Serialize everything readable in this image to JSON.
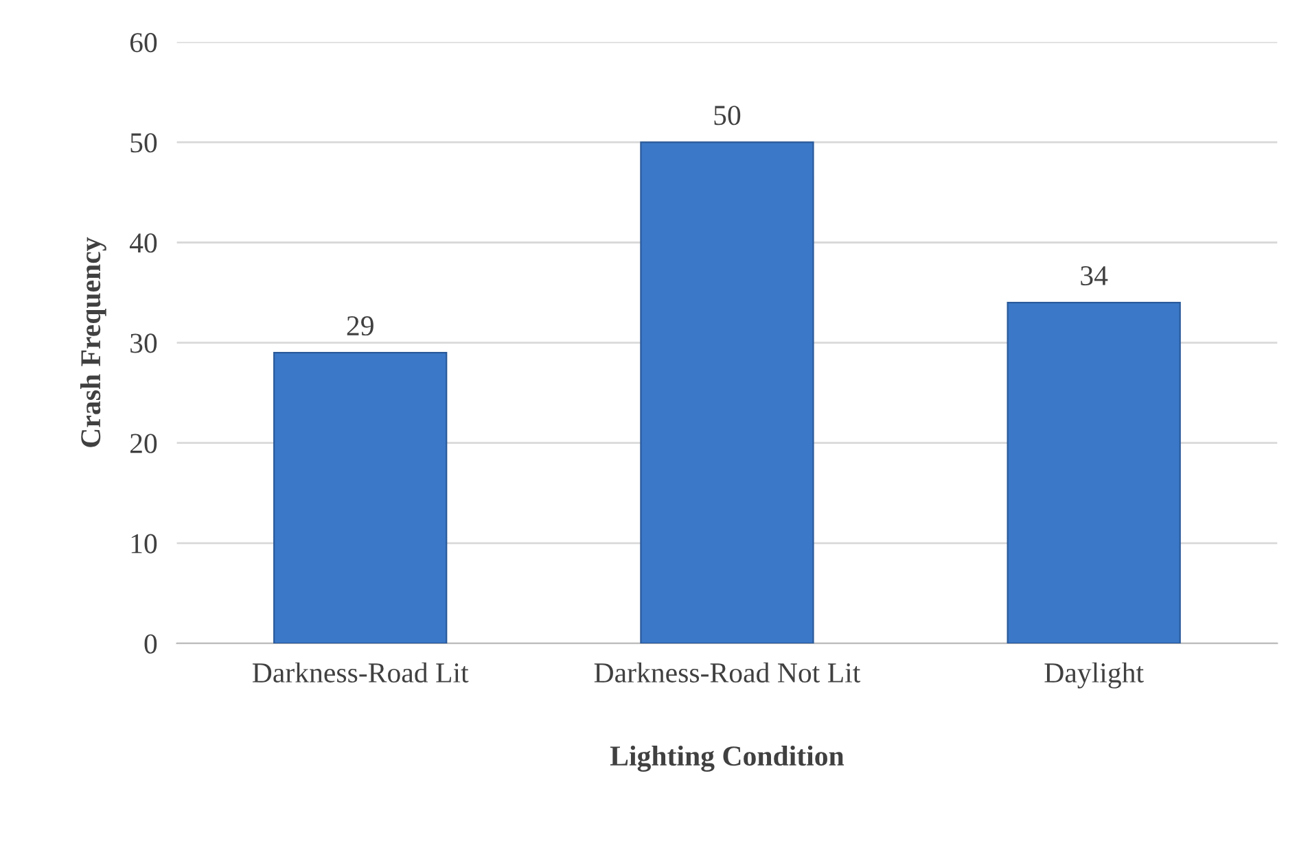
{
  "chart_data": {
    "type": "bar",
    "xlabel": "Lighting Condition",
    "ylabel": "Crash Frequency",
    "categories": [
      "Darkness-Road Lit",
      "Darkness-Road Not Lit",
      "Daylight"
    ],
    "values": [
      29,
      50,
      34
    ],
    "color": "#3b78c8",
    "ylim": [
      0,
      60
    ],
    "yticks": [
      0,
      10,
      20,
      30,
      40,
      50,
      60
    ],
    "grid": "y",
    "data_labels": true
  }
}
